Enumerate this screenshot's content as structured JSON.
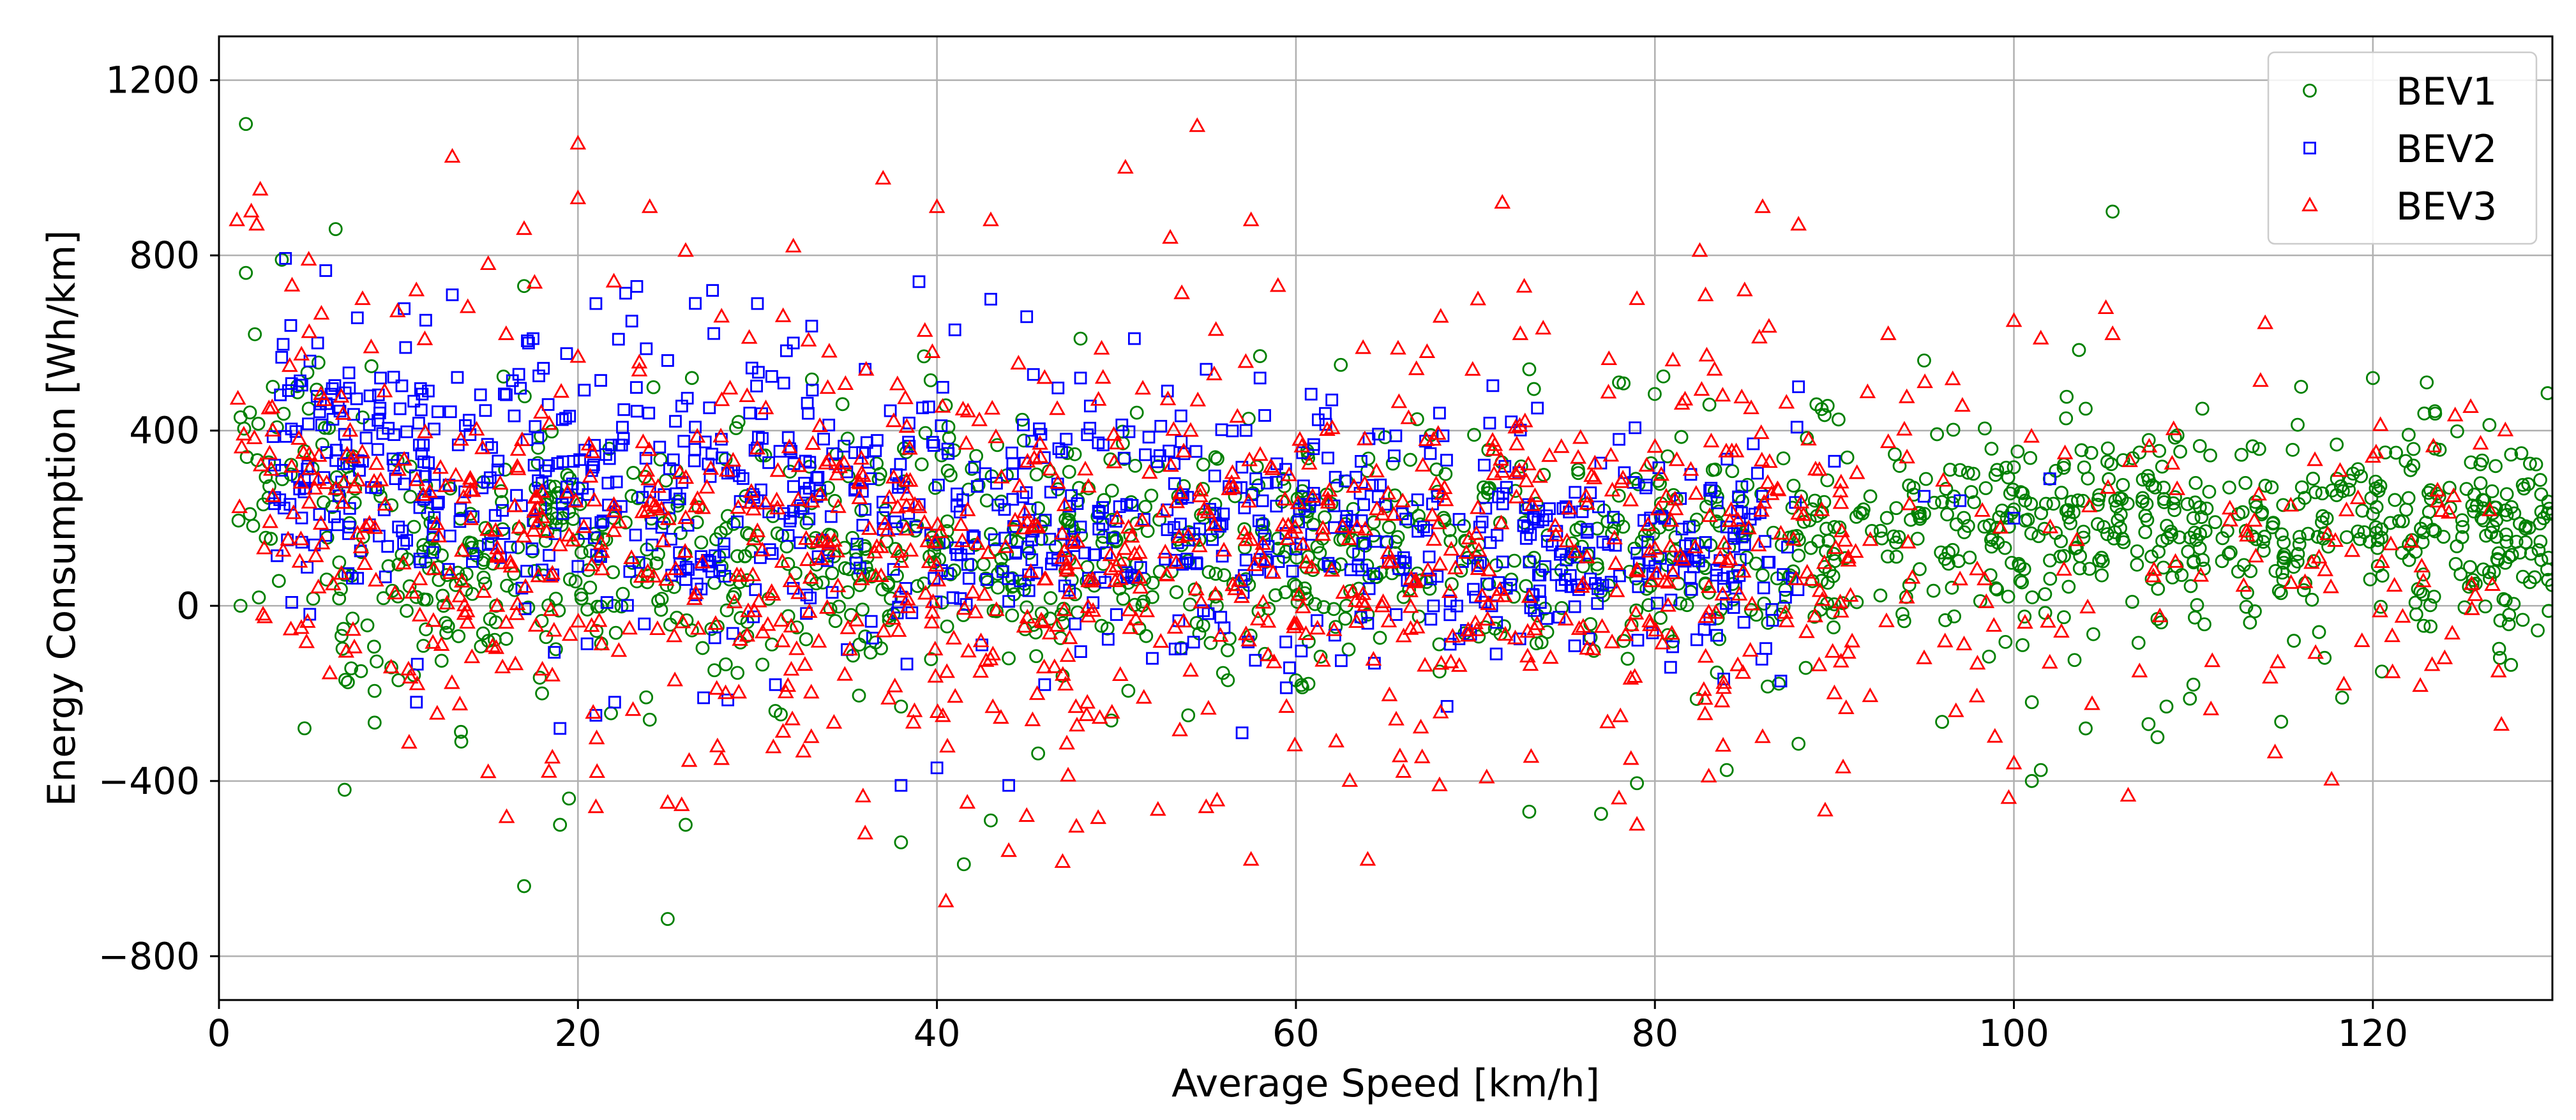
{
  "chart_data": {
    "type": "scatter",
    "xlabel": "Average Speed [km/h]",
    "ylabel": "Energy Consumption [Wh/km]",
    "xlim": [
      0,
      130
    ],
    "ylim": [
      -900,
      1300
    ],
    "xticks": [
      0,
      20,
      40,
      60,
      80,
      100,
      120
    ],
    "xtick_labels": [
      "0",
      "20",
      "40",
      "60",
      "80",
      "100",
      "120"
    ],
    "yticks": [
      -800,
      -400,
      0,
      400,
      800,
      1200
    ],
    "ytick_labels": [
      "−800",
      "−400",
      "0",
      "400",
      "800",
      "1200"
    ],
    "grid": true,
    "legend_position": "top-right",
    "point_counts": {
      "BEV1": 1400,
      "BEV2": 900,
      "BEV3": 1000
    },
    "series": [
      {
        "name": "BEV1",
        "color": "#008000",
        "marker": "circle",
        "points": [
          [
            1.5,
            1100
          ],
          [
            1.2,
            0
          ],
          [
            7,
            -420
          ],
          [
            17,
            -640
          ],
          [
            25,
            -715
          ],
          [
            6.5,
            860
          ],
          [
            3.5,
            790
          ],
          [
            17,
            730
          ],
          [
            1.5,
            760
          ],
          [
            105.5,
            900
          ],
          [
            58,
            570
          ],
          [
            62.5,
            550
          ],
          [
            73,
            540
          ],
          [
            78,
            510
          ],
          [
            120,
            520
          ],
          [
            123,
            510
          ],
          [
            116,
            500
          ],
          [
            95,
            560
          ],
          [
            110.5,
            450
          ],
          [
            104,
            450
          ],
          [
            89,
            460
          ],
          [
            48,
            610
          ],
          [
            108,
            -30
          ],
          [
            101,
            -400
          ],
          [
            101.5,
            -375
          ],
          [
            104,
            -280
          ],
          [
            107.5,
            -270
          ],
          [
            110,
            -180
          ],
          [
            108.5,
            -230
          ],
          [
            108,
            -300
          ],
          [
            120.5,
            -150
          ],
          [
            117,
            -60
          ],
          [
            73,
            -470
          ],
          [
            77,
            -475
          ],
          [
            79,
            -405
          ],
          [
            41.5,
            -590
          ],
          [
            38,
            -540
          ],
          [
            43,
            -490
          ],
          [
            26,
            -500
          ],
          [
            19,
            -500
          ],
          [
            19.5,
            -440
          ],
          [
            10,
            -170
          ],
          [
            13.5,
            -310
          ],
          [
            84,
            -375
          ],
          [
            88,
            -315
          ],
          [
            96,
            -265
          ],
          [
            101,
            -220
          ],
          [
            12,
            130
          ],
          [
            20,
            150
          ],
          [
            30,
            160
          ],
          [
            40,
            140
          ],
          [
            50,
            150
          ],
          [
            60,
            130
          ],
          [
            70,
            110
          ],
          [
            85,
            160
          ],
          [
            90,
            180
          ],
          [
            95,
            210
          ],
          [
            100,
            220
          ],
          [
            105,
            180
          ],
          [
            110,
            200
          ],
          [
            115,
            230
          ],
          [
            120,
            210
          ],
          [
            125,
            180
          ],
          [
            127,
            120
          ],
          [
            130,
            210
          ],
          [
            8,
            430
          ],
          [
            5,
            450
          ],
          [
            3,
            500
          ],
          [
            2,
            620
          ],
          [
            4,
            300
          ],
          [
            9,
            250
          ],
          [
            14,
            210
          ],
          [
            22,
            200
          ],
          [
            28,
            90
          ],
          [
            33,
            60
          ],
          [
            36,
            -70
          ],
          [
            44,
            -120
          ],
          [
            52,
            20
          ],
          [
            56,
            70
          ],
          [
            64,
            -20
          ],
          [
            66,
            20
          ],
          [
            72,
            60
          ],
          [
            76,
            90
          ],
          [
            81,
            110
          ],
          [
            86,
            70
          ],
          [
            92,
            250
          ],
          [
            97,
            310
          ],
          [
            102,
            290
          ],
          [
            107,
            350
          ],
          [
            112,
            270
          ],
          [
            118,
            290
          ],
          [
            122,
            140
          ],
          [
            126,
            280
          ],
          [
            113,
            30
          ],
          [
            99,
            40
          ],
          [
            94,
            20
          ],
          [
            87,
            -20
          ],
          [
            83,
            30
          ],
          [
            74,
            -60
          ],
          [
            68,
            -150
          ],
          [
            60,
            -170
          ],
          [
            54,
            -250
          ],
          [
            47,
            -160
          ],
          [
            38,
            -230
          ],
          [
            31,
            -240
          ],
          [
            24,
            -260
          ],
          [
            18,
            -200
          ],
          [
            15,
            -80
          ],
          [
            11,
            20
          ],
          [
            6,
            60
          ]
        ]
      },
      {
        "name": "BEV2",
        "color": "#0000ff",
        "marker": "square",
        "points": [
          [
            4,
            640
          ],
          [
            5.5,
            600
          ],
          [
            9,
            520
          ],
          [
            13,
            710
          ],
          [
            17.5,
            610
          ],
          [
            21,
            690
          ],
          [
            23,
            650
          ],
          [
            25,
            560
          ],
          [
            27.5,
            720
          ],
          [
            30,
            690
          ],
          [
            32,
            600
          ],
          [
            36,
            540
          ],
          [
            39,
            740
          ],
          [
            41,
            630
          ],
          [
            43,
            700
          ],
          [
            45,
            660
          ],
          [
            48,
            520
          ],
          [
            51,
            610
          ],
          [
            55,
            540
          ],
          [
            58,
            520
          ],
          [
            62,
            470
          ],
          [
            68,
            440
          ],
          [
            72,
            420
          ],
          [
            78,
            380
          ],
          [
            82,
            300
          ],
          [
            88,
            500
          ],
          [
            86,
            250
          ],
          [
            84,
            180
          ],
          [
            79,
            120
          ],
          [
            73,
            100
          ],
          [
            66,
            110
          ],
          [
            60,
            130
          ],
          [
            54,
            150
          ],
          [
            48,
            180
          ],
          [
            42,
            160
          ],
          [
            36,
            220
          ],
          [
            30,
            240
          ],
          [
            24,
            260
          ],
          [
            18,
            280
          ],
          [
            12,
            300
          ],
          [
            8,
            330
          ],
          [
            6,
            350
          ],
          [
            10,
            180
          ],
          [
            15,
            140
          ],
          [
            20,
            90
          ],
          [
            26,
            60
          ],
          [
            32,
            40
          ],
          [
            38,
            20
          ],
          [
            44,
            10
          ],
          [
            50,
            -20
          ],
          [
            56,
            -50
          ],
          [
            35,
            -100
          ],
          [
            31,
            -180
          ],
          [
            27,
            -210
          ],
          [
            21,
            -250
          ],
          [
            19,
            -280
          ],
          [
            11,
            -220
          ],
          [
            40,
            -370
          ],
          [
            38,
            -410
          ],
          [
            44,
            -410
          ],
          [
            57,
            -290
          ],
          [
            46,
            -180
          ],
          [
            52,
            -120
          ],
          [
            64,
            -40
          ],
          [
            70,
            20
          ],
          [
            75,
            60
          ],
          [
            80,
            90
          ],
          [
            85,
            140
          ],
          [
            90,
            330
          ],
          [
            95,
            250
          ],
          [
            100,
            200
          ],
          [
            102,
            290
          ],
          [
            97,
            240
          ]
        ]
      },
      {
        "name": "BEV3",
        "color": "#ff0000",
        "marker": "triangle",
        "points": [
          [
            1,
            880
          ],
          [
            1.8,
            900
          ],
          [
            2.3,
            950
          ],
          [
            2.1,
            870
          ],
          [
            13,
            1025
          ],
          [
            20,
            1055
          ],
          [
            20,
            930
          ],
          [
            15,
            780
          ],
          [
            17,
            860
          ],
          [
            24,
            910
          ],
          [
            26,
            810
          ],
          [
            32,
            820
          ],
          [
            37,
            975
          ],
          [
            40,
            910
          ],
          [
            43,
            880
          ],
          [
            50.5,
            1000
          ],
          [
            54.5,
            1095
          ],
          [
            53,
            840
          ],
          [
            57.5,
            880
          ],
          [
            59,
            730
          ],
          [
            71.5,
            920
          ],
          [
            86,
            910
          ],
          [
            88,
            870
          ],
          [
            85,
            720
          ],
          [
            82.5,
            810
          ],
          [
            79,
            700
          ],
          [
            72.5,
            620
          ],
          [
            81,
            560
          ],
          [
            93,
            620
          ],
          [
            100,
            650
          ],
          [
            101.5,
            610
          ],
          [
            105.5,
            620
          ],
          [
            114,
            645
          ],
          [
            120,
            340
          ],
          [
            126,
            370
          ],
          [
            124.5,
            250
          ],
          [
            121,
            140
          ],
          [
            117,
            110
          ],
          [
            113,
            160
          ],
          [
            109,
            100
          ],
          [
            102,
            -130
          ],
          [
            100,
            -360
          ],
          [
            107,
            -150
          ],
          [
            124,
            -120
          ],
          [
            127,
            -150
          ],
          [
            64,
            -580
          ],
          [
            57.5,
            -580
          ],
          [
            47,
            -585
          ],
          [
            40.5,
            -675
          ],
          [
            44,
            -560
          ],
          [
            36,
            -520
          ],
          [
            25,
            -450
          ],
          [
            21,
            -460
          ],
          [
            15,
            -380
          ],
          [
            28,
            -350
          ],
          [
            33,
            -300
          ],
          [
            45,
            -480
          ],
          [
            55,
            -460
          ],
          [
            63,
            -400
          ],
          [
            68,
            -410
          ],
          [
            78,
            -440
          ],
          [
            79,
            -500
          ],
          [
            83,
            -390
          ],
          [
            86,
            -300
          ],
          [
            90,
            -200
          ],
          [
            95,
            -120
          ],
          [
            97,
            60
          ],
          [
            92,
            150
          ],
          [
            88,
            210
          ],
          [
            84,
            100
          ],
          [
            80,
            130
          ],
          [
            76,
            50
          ],
          [
            73,
            20
          ],
          [
            70,
            -40
          ],
          [
            66,
            -70
          ],
          [
            62,
            80
          ],
          [
            58,
            120
          ],
          [
            54,
            160
          ],
          [
            50,
            90
          ],
          [
            46,
            60
          ],
          [
            42,
            30
          ],
          [
            38,
            100
          ],
          [
            34,
            140
          ],
          [
            30,
            170
          ],
          [
            26,
            200
          ],
          [
            22,
            230
          ],
          [
            18,
            260
          ],
          [
            14,
            290
          ],
          [
            10,
            310
          ],
          [
            6,
            280
          ],
          [
            3,
            250
          ],
          [
            5,
            790
          ],
          [
            8,
            700
          ],
          [
            11,
            720
          ],
          [
            16,
            620
          ],
          [
            22,
            740
          ],
          [
            28,
            660
          ],
          [
            34,
            580
          ],
          [
            46,
            520
          ],
          [
            49,
            470
          ]
        ]
      }
    ]
  }
}
